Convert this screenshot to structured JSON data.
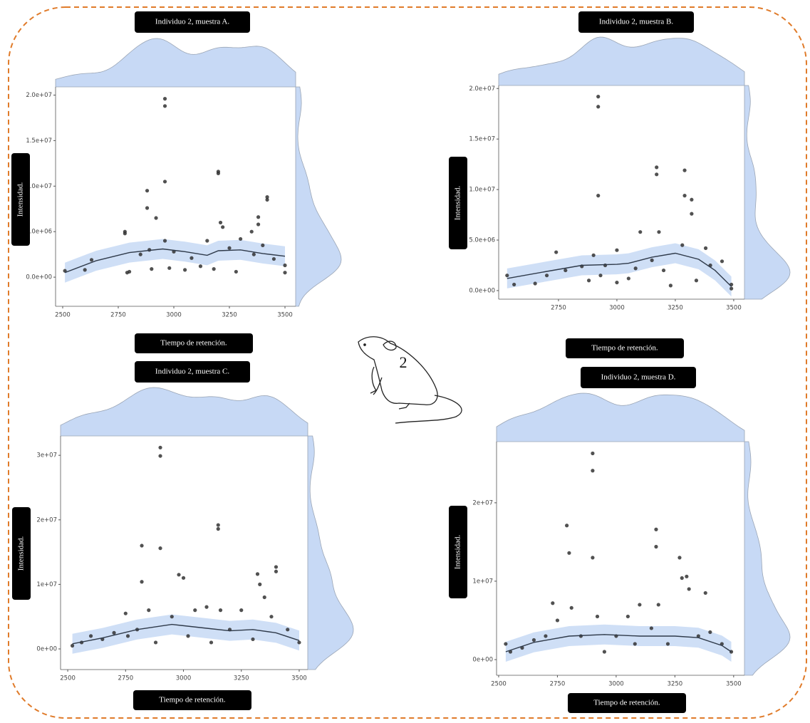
{
  "subject_label": "2",
  "chart_data": [
    {
      "type": "scatter",
      "title": "Individuo 2, muestra A.",
      "x_label": "Tiempo de retención.",
      "y_label": "Intensidad.",
      "color": "#333333",
      "trend_color": "#2f3a4a",
      "band_color": "#c7d9f5",
      "xlim": [
        2468,
        3548
      ],
      "ylim": [
        -3200000.0,
        20900000.0
      ],
      "xticks": [
        2500,
        2750,
        3000,
        3250,
        3500
      ],
      "yticks": [
        {
          "value": 0,
          "label": "0.0e+00"
        },
        {
          "value": 5000000.0,
          "label": "5.0e+06"
        },
        {
          "value": 10000000.0,
          "label": "1.0e+07"
        },
        {
          "value": 15000000.0,
          "label": "1.5e+07"
        },
        {
          "value": 20000000.0,
          "label": "2.0e+07"
        }
      ],
      "points": {
        "x": [
          2510,
          2600,
          2630,
          2780,
          2780,
          2790,
          2800,
          2850,
          2880,
          2880,
          2890,
          2900,
          2920,
          2960,
          2960,
          2960,
          2960,
          2980,
          3000,
          3050,
          3080,
          3120,
          3150,
          3180,
          3200,
          3200,
          3210,
          3220,
          3250,
          3280,
          3300,
          3350,
          3360,
          3380,
          3380,
          3400,
          3420,
          3420,
          3450,
          3500,
          3500
        ],
        "y": [
          700000.0,
          800000.0,
          1900000.0,
          5000000.0,
          4800000.0,
          500000.0,
          600000.0,
          2500000.0,
          9500000.0,
          7600000.0,
          3000000.0,
          900000.0,
          6500000.0,
          19600000.0,
          18800000.0,
          10500000.0,
          4000000.0,
          1000000.0,
          2800000.0,
          800000.0,
          2100000.0,
          1200000.0,
          4000000.0,
          900000.0,
          11600000.0,
          11400000.0,
          6000000.0,
          5500000.0,
          3200000.0,
          600000.0,
          4200000.0,
          5000000.0,
          2500000.0,
          6600000.0,
          5800000.0,
          3500000.0,
          8800000.0,
          8500000.0,
          2000000.0,
          1300000.0,
          500000.0
        ]
      },
      "trend": {
        "x": [
          2510,
          2650,
          2800,
          2950,
          3050,
          3150,
          3200,
          3300,
          3400,
          3500
        ],
        "y": [
          500000.0,
          1800000.0,
          2700000.0,
          3100000.0,
          2800000.0,
          2400000.0,
          2900000.0,
          3000000.0,
          2600000.0,
          2300000.0
        ]
      }
    },
    {
      "type": "scatter",
      "title": "Individuo 2, muestra B.",
      "x_label": "Tiempo de retención.",
      "y_label": "Intensidad.",
      "color": "#333333",
      "trend_color": "#2f3a4a",
      "band_color": "#c7d9f5",
      "xlim": [
        2494,
        3546
      ],
      "ylim": [
        -850000.0,
        20300000.0
      ],
      "xticks": [
        2750,
        3000,
        3250,
        3500
      ],
      "yticks": [
        {
          "value": 0,
          "label": "0.0e+00"
        },
        {
          "value": 5000000.0,
          "label": "5.0e+06"
        },
        {
          "value": 10000000.0,
          "label": "1.0e+07"
        },
        {
          "value": 15000000.0,
          "label": "1.5e+07"
        },
        {
          "value": 20000000.0,
          "label": "2.0e+07"
        }
      ],
      "points": {
        "x": [
          2530,
          2560,
          2650,
          2700,
          2740,
          2780,
          2850,
          2880,
          2900,
          2920,
          2920,
          2920,
          2930,
          2950,
          3000,
          3000,
          3050,
          3080,
          3100,
          3150,
          3170,
          3170,
          3180,
          3200,
          3230,
          3280,
          3290,
          3290,
          3320,
          3320,
          3340,
          3380,
          3400,
          3450,
          3490,
          3490
        ],
        "y": [
          1500000.0,
          600000.0,
          700000.0,
          1500000.0,
          3800000.0,
          2000000.0,
          2400000.0,
          1000000.0,
          3500000.0,
          19200000.0,
          18200000.0,
          9400000.0,
          1500000.0,
          2500000.0,
          800000.0,
          4000000.0,
          1200000.0,
          2200000.0,
          5800000.0,
          3000000.0,
          12200000.0,
          11500000.0,
          5800000.0,
          2000000.0,
          500000.0,
          4500000.0,
          11900000.0,
          9400000.0,
          9000000.0,
          7600000.0,
          1000000.0,
          4200000.0,
          2500000.0,
          2900000.0,
          600000.0,
          200000.0
        ]
      },
      "trend": {
        "x": [
          2530,
          2700,
          2850,
          3000,
          3050,
          3150,
          3250,
          3350,
          3420,
          3490
        ],
        "y": [
          1200000.0,
          1900000.0,
          2500000.0,
          2600000.0,
          2700000.0,
          3300000.0,
          3700000.0,
          3100000.0,
          2000000.0,
          400000.0
        ]
      }
    },
    {
      "type": "scatter",
      "title": "Individuo 2, muestra C.",
      "x_label": "Tiempo de retención.",
      "y_label": "Intensidad.",
      "color": "#333333",
      "trend_color": "#2f3a4a",
      "band_color": "#c7d9f5",
      "xlim": [
        2469,
        3537
      ],
      "ylim": [
        -3200000.0,
        33000000.0
      ],
      "xticks": [
        2500,
        2750,
        3000,
        3250,
        3500
      ],
      "yticks": [
        {
          "value": 0,
          "label": "0e+00"
        },
        {
          "value": 10000000.0,
          "label": "1e+07"
        },
        {
          "value": 20000000.0,
          "label": "2e+07"
        },
        {
          "value": 30000000.0,
          "label": "3e+07"
        }
      ],
      "points": {
        "x": [
          2520,
          2560,
          2600,
          2650,
          2700,
          2750,
          2760,
          2800,
          2820,
          2820,
          2850,
          2880,
          2900,
          2900,
          2900,
          2950,
          2980,
          3000,
          3020,
          3050,
          3100,
          3120,
          3150,
          3150,
          3160,
          3200,
          3250,
          3300,
          3320,
          3330,
          3350,
          3380,
          3400,
          3400,
          3450,
          3500
        ],
        "y": [
          500000.0,
          1000000.0,
          2000000.0,
          1500000.0,
          2500000.0,
          5500000.0,
          2000000.0,
          3000000.0,
          16000000.0,
          10400000.0,
          6000000.0,
          1000000.0,
          31200000.0,
          29900000.0,
          15600000.0,
          5000000.0,
          11500000.0,
          11000000.0,
          2000000.0,
          6000000.0,
          6500000.0,
          1000000.0,
          19200000.0,
          18600000.0,
          6000000.0,
          3000000.0,
          6000000.0,
          1500000.0,
          11600000.0,
          10000000.0,
          8000000.0,
          5000000.0,
          12700000.0,
          12000000.0,
          3000000.0,
          1000000.0
        ]
      },
      "trend": {
        "x": [
          2520,
          2650,
          2800,
          2950,
          3100,
          3200,
          3300,
          3400,
          3500
        ],
        "y": [
          800000.0,
          1700000.0,
          3000000.0,
          3800000.0,
          3200000.0,
          2800000.0,
          3000000.0,
          2500000.0,
          1300000.0
        ]
      }
    },
    {
      "type": "scatter",
      "title": "Individuo 2, muestra D.",
      "x_label": "Tiempo de retención.",
      "y_label": "Intensidad.",
      "color": "#333333",
      "trend_color": "#2f3a4a",
      "band_color": "#c7d9f5",
      "xlim": [
        2491,
        3546
      ],
      "ylim": [
        -2000000.0,
        27800000.0
      ],
      "xticks": [
        2500,
        2750,
        3000,
        3250,
        3500
      ],
      "yticks": [
        {
          "value": 0,
          "label": "0e+00"
        },
        {
          "value": 10000000.0,
          "label": "1e+07"
        },
        {
          "value": 20000000.0,
          "label": "2e+07"
        }
      ],
      "points": {
        "x": [
          2530,
          2550,
          2600,
          2650,
          2700,
          2730,
          2750,
          2790,
          2800,
          2810,
          2850,
          2900,
          2900,
          2900,
          2920,
          2950,
          3000,
          3050,
          3080,
          3100,
          3150,
          3170,
          3170,
          3180,
          3220,
          3270,
          3280,
          3300,
          3310,
          3350,
          3380,
          3400,
          3450,
          3490
        ],
        "y": [
          2000000.0,
          1000000.0,
          1500000.0,
          2500000.0,
          3000000.0,
          7200000.0,
          5000000.0,
          17100000.0,
          13600000.0,
          6600000.0,
          3000000.0,
          26300000.0,
          24100000.0,
          13000000.0,
          5500000.0,
          1000000.0,
          3000000.0,
          5500000.0,
          2000000.0,
          7000000.0,
          4000000.0,
          16600000.0,
          14400000.0,
          7000000.0,
          2000000.0,
          13000000.0,
          10400000.0,
          10600000.0,
          9000000.0,
          3000000.0,
          8500000.0,
          3500000.0,
          2000000.0,
          1000000.0
        ]
      },
      "trend": {
        "x": [
          2530,
          2650,
          2800,
          2950,
          3100,
          3250,
          3350,
          3450,
          3490
        ],
        "y": [
          1000000.0,
          2200000.0,
          3000000.0,
          3200000.0,
          3000000.0,
          3000000.0,
          2800000.0,
          1800000.0,
          1000000.0
        ]
      }
    }
  ]
}
